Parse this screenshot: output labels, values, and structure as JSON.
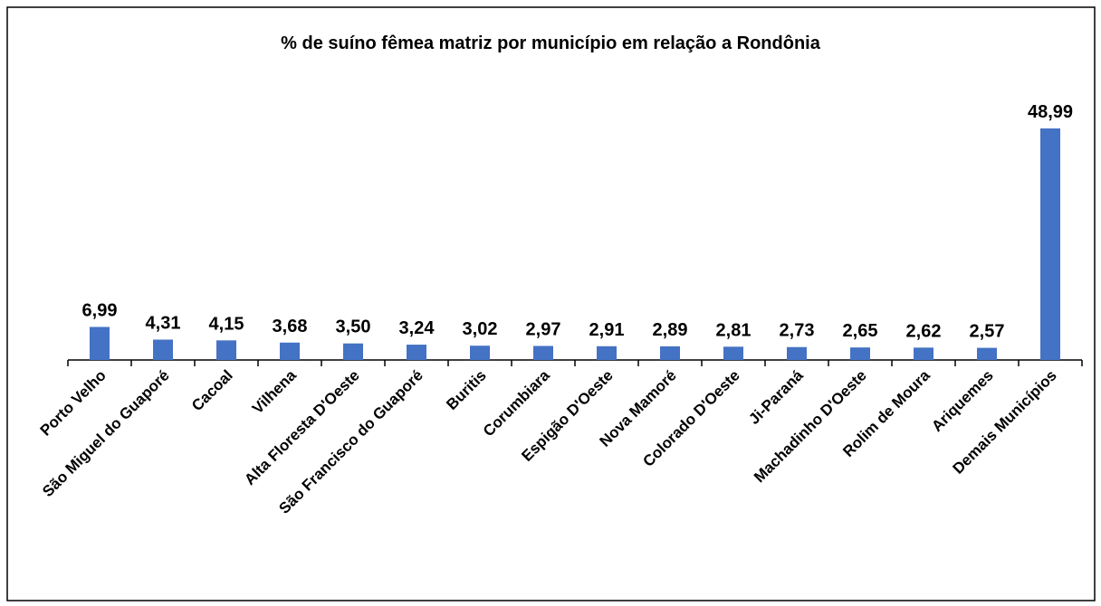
{
  "chart_data": {
    "type": "bar",
    "title": "% de suíno fêmea matriz por município em relação a Rondônia",
    "categories": [
      "Porto Velho",
      "São Miguel do Guaporé",
      "Cacoal",
      "Vilhena",
      "Alta Floresta D'Oeste",
      "São Francisco do Guaporé",
      "Buritis",
      "Corumbiara",
      "Espigão D'Oeste",
      "Nova Mamoré",
      "Colorado D'Oeste",
      "Ji-Paraná",
      "Machadinho D'Oeste",
      "Rolim de Moura",
      "Ariquemes",
      "Demais Municípios"
    ],
    "values": [
      6.99,
      4.31,
      4.15,
      3.68,
      3.5,
      3.24,
      3.02,
      2.97,
      2.91,
      2.89,
      2.81,
      2.73,
      2.65,
      2.62,
      2.57,
      48.99
    ],
    "value_labels": [
      "6,99",
      "4,31",
      "4,15",
      "3,68",
      "3,50",
      "3,24",
      "3,02",
      "2,97",
      "2,91",
      "2,89",
      "2,81",
      "2,73",
      "2,65",
      "2,62",
      "2,57",
      "48,99"
    ],
    "color": "#4472c4"
  }
}
